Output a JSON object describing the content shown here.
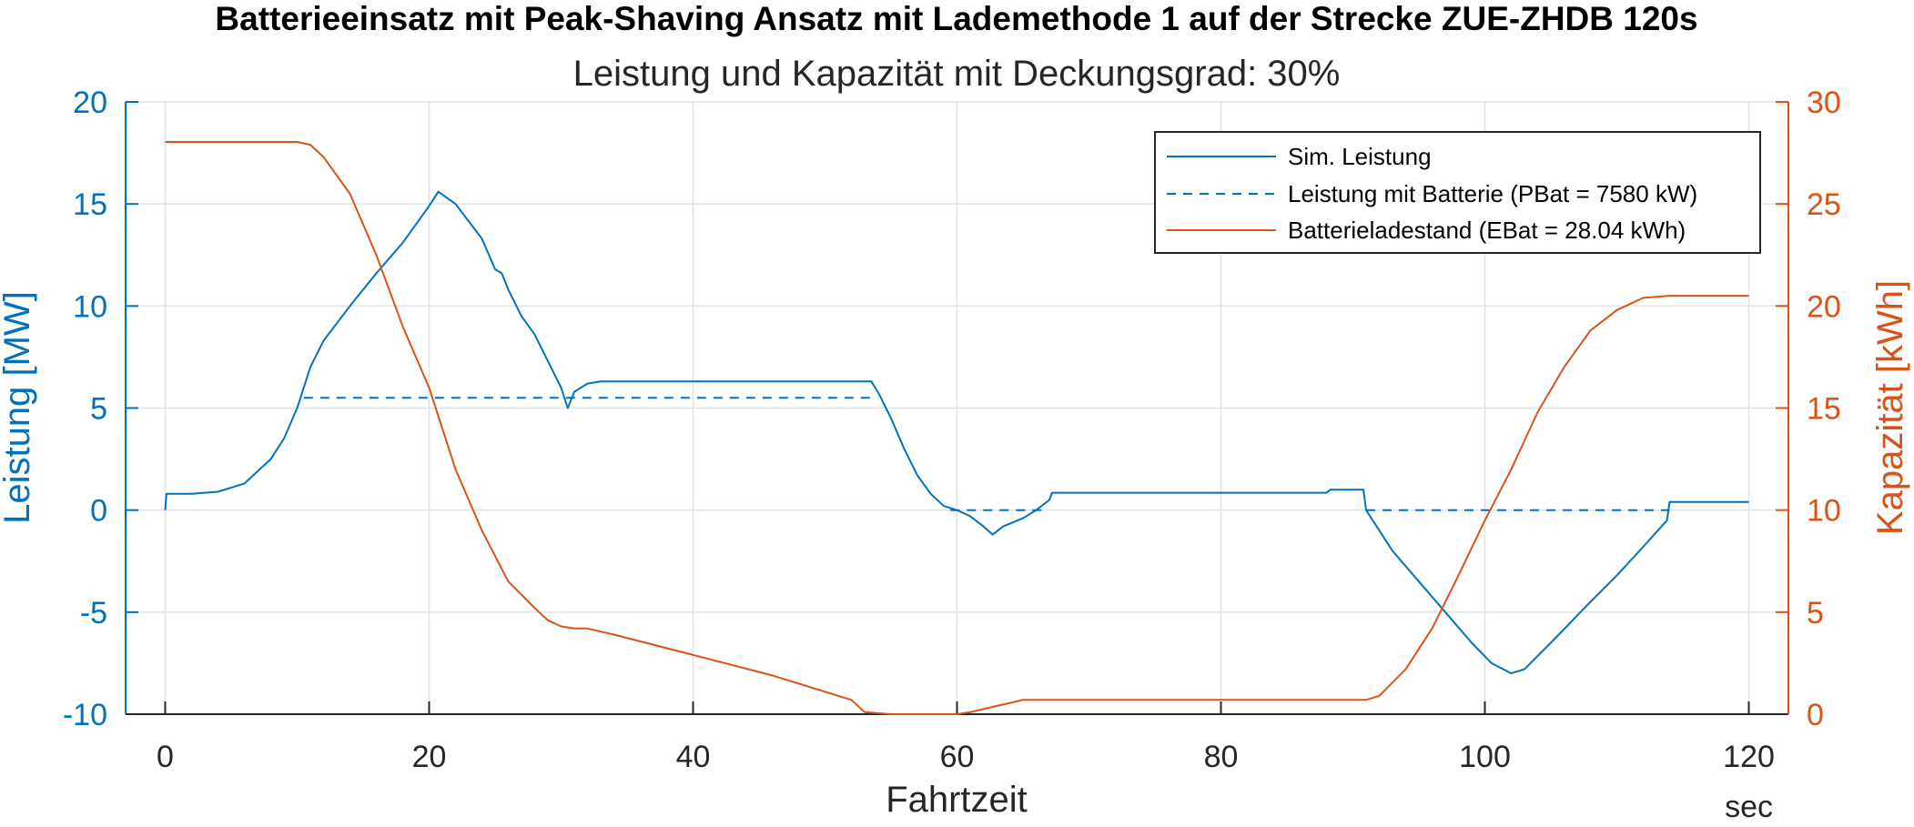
{
  "chart_data": {
    "type": "line",
    "title": "Batterieeinsatz mit Peak-Shaving Ansatz mit Lademethode 1 auf der Strecke ZUE-ZHDB 120s",
    "subtitle": "Leistung und Kapazität mit Deckungsgrad: 30%",
    "xlabel": "Fahrtzeit",
    "x_unit": "sec",
    "ylabel_left": "Leistung [MW]",
    "ylabel_right": "Kapazität [kWh]",
    "xlim": [
      -3,
      123
    ],
    "ylim_left": [
      -10,
      20
    ],
    "ylim_right": [
      0,
      30
    ],
    "x_ticks": [
      0,
      20,
      40,
      60,
      80,
      100,
      120
    ],
    "y_ticks_left": [
      -10,
      -5,
      0,
      5,
      10,
      15,
      20
    ],
    "y_ticks_right": [
      0,
      5,
      10,
      15,
      20,
      25,
      30
    ],
    "grid": true,
    "legend_position": "top-right",
    "colors": {
      "left": "#0072BD",
      "right": "#D95319",
      "grid": "#dfe3e8",
      "axis": "#262626"
    },
    "series": [
      {
        "name": "Sim. Leistung",
        "axis": "left",
        "style": "solid",
        "color": "#0072BD",
        "points": [
          [
            0,
            0
          ],
          [
            0.1,
            0.8
          ],
          [
            2,
            0.8
          ],
          [
            4,
            0.9
          ],
          [
            6,
            1.3
          ],
          [
            8,
            2.5
          ],
          [
            9,
            3.5
          ],
          [
            10,
            5.0
          ],
          [
            11,
            7.0
          ],
          [
            12,
            8.3
          ],
          [
            14,
            10.0
          ],
          [
            16,
            11.6
          ],
          [
            18,
            13.1
          ],
          [
            20,
            14.9
          ],
          [
            20.7,
            15.6
          ],
          [
            22,
            15.0
          ],
          [
            24,
            13.3
          ],
          [
            25,
            11.8
          ],
          [
            25.5,
            11.6
          ],
          [
            26,
            10.8
          ],
          [
            27,
            9.5
          ],
          [
            28,
            8.6
          ],
          [
            29,
            7.3
          ],
          [
            30,
            6.0
          ],
          [
            30.5,
            5.0
          ],
          [
            31,
            5.8
          ],
          [
            32,
            6.2
          ],
          [
            33,
            6.3
          ],
          [
            53.5,
            6.3
          ],
          [
            54,
            5.8
          ],
          [
            55,
            4.5
          ],
          [
            56,
            3.0
          ],
          [
            57,
            1.7
          ],
          [
            58,
            0.8
          ],
          [
            59,
            0.2
          ],
          [
            60,
            0.0
          ],
          [
            61,
            -0.3
          ],
          [
            62,
            -0.8
          ],
          [
            62.7,
            -1.2
          ],
          [
            63.5,
            -0.8
          ],
          [
            65,
            -0.4
          ],
          [
            66,
            0.0
          ],
          [
            67,
            0.5
          ],
          [
            67.2,
            0.85
          ],
          [
            88,
            0.85
          ],
          [
            88.3,
            1.0
          ],
          [
            90.8,
            1.0
          ],
          [
            91,
            0.0
          ],
          [
            93,
            -2.0
          ],
          [
            95,
            -3.5
          ],
          [
            97,
            -5.0
          ],
          [
            99,
            -6.5
          ],
          [
            100.5,
            -7.5
          ],
          [
            102,
            -8.0
          ],
          [
            103,
            -7.8
          ],
          [
            105,
            -6.5
          ],
          [
            108,
            -4.5
          ],
          [
            110,
            -3.2
          ],
          [
            112,
            -1.8
          ],
          [
            113.8,
            -0.5
          ],
          [
            114,
            0.4
          ],
          [
            120,
            0.4
          ]
        ]
      },
      {
        "name": "Leistung mit Batterie (PBat = 7580 kW)",
        "axis": "left",
        "style": "dashed",
        "color": "#0072BD",
        "points": [
          [
            10.5,
            5.5
          ],
          [
            53.5,
            5.5
          ],
          [
            53.5,
            5.5
          ],
          [
            54,
            5.5
          ],
          [
            60,
            0.0
          ],
          [
            67,
            0.0
          ],
          [
            91,
            0.0
          ],
          [
            114,
            0.0
          ]
        ],
        "segments": [
          [
            [
              10.5,
              5.5
            ],
            [
              53.5,
              5.5
            ]
          ],
          [
            [
              59.5,
              0.0
            ],
            [
              66.5,
              0.0
            ]
          ],
          [
            [
              91,
              0.0
            ],
            [
              114,
              0.0
            ]
          ]
        ]
      },
      {
        "name": "Batterieladestand (EBat = 28.04 kWh)",
        "axis": "right",
        "style": "solid",
        "color": "#D95319",
        "points": [
          [
            0,
            28.04
          ],
          [
            10,
            28.04
          ],
          [
            11,
            27.9
          ],
          [
            12,
            27.3
          ],
          [
            14,
            25.5
          ],
          [
            16,
            22.5
          ],
          [
            18,
            19.0
          ],
          [
            20,
            16.0
          ],
          [
            22,
            12.0
          ],
          [
            24,
            9.0
          ],
          [
            26,
            6.5
          ],
          [
            28,
            5.2
          ],
          [
            29,
            4.6
          ],
          [
            30,
            4.3
          ],
          [
            31,
            4.2
          ],
          [
            32,
            4.2
          ],
          [
            34,
            3.9
          ],
          [
            40,
            2.9
          ],
          [
            46,
            1.9
          ],
          [
            52,
            0.7
          ],
          [
            53,
            0.1
          ],
          [
            55,
            0.0
          ],
          [
            60,
            0.0
          ],
          [
            61,
            0.1
          ],
          [
            63,
            0.4
          ],
          [
            65,
            0.7
          ],
          [
            66,
            0.7
          ],
          [
            91,
            0.7
          ],
          [
            92,
            0.9
          ],
          [
            94,
            2.2
          ],
          [
            96,
            4.2
          ],
          [
            98,
            6.8
          ],
          [
            100,
            9.5
          ],
          [
            102,
            12.0
          ],
          [
            104,
            14.8
          ],
          [
            106,
            17.0
          ],
          [
            108,
            18.8
          ],
          [
            110,
            19.8
          ],
          [
            112,
            20.4
          ],
          [
            114,
            20.5
          ],
          [
            120,
            20.5
          ]
        ]
      }
    ]
  }
}
